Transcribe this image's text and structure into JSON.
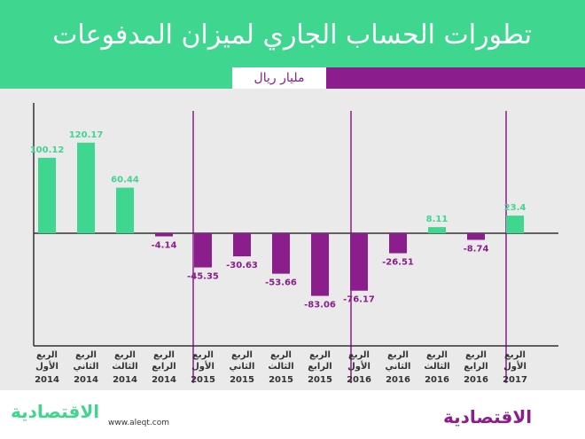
{
  "header": {
    "title": "تطورات الحساب الجاري لميزان المدفوعات",
    "unit": "مليار ريال"
  },
  "colors": {
    "positive": "#3fd68f",
    "negative": "#8b1d8c",
    "header_bg": "#3fd68f",
    "band": "#8b1d8c",
    "chart_bg": "#eaeaea"
  },
  "footer": {
    "logo_left": "الاقتصادية",
    "url": "www.aleqt.com",
    "logo_right": "الاقتصادية"
  },
  "chart_data": {
    "type": "bar",
    "title": "تطورات الحساب الجاري لميزان المدفوعات",
    "ylabel": "مليار ريال",
    "categories": [
      "الربع الأول 2014",
      "الربع الثاني 2014",
      "الربع الثالث 2014",
      "الربع الرابع 2014",
      "الربع الأول 2015",
      "الربع الثاني 2015",
      "الربع الثالث 2015",
      "الربع الرابع 2015",
      "الربع الأول 2016",
      "الربع الثاني 2016",
      "الربع الثالث 2016",
      "الربع الرابع 2016",
      "الربع الأول 2017"
    ],
    "values": [
      100.12,
      120.17,
      60.44,
      -4.14,
      -45.35,
      -30.63,
      -53.66,
      -83.06,
      -76.17,
      -26.51,
      8.11,
      -8.74,
      23.4
    ],
    "labels": [
      "100.12",
      "120.17",
      "60.44",
      "-4.14",
      "-45.35",
      "-30.63",
      "-53.66",
      "-83.06",
      "-76.17",
      "-26.51",
      "8.11",
      "-8.74",
      "23.4"
    ],
    "quarter_line1": [
      "الربع",
      "الربع",
      "الربع",
      "الربع",
      "الربع",
      "الربع",
      "الربع",
      "الربع",
      "الربع",
      "الربع",
      "الربع",
      "الربع",
      "الربع"
    ],
    "quarter_line2": [
      "الأول",
      "الثاني",
      "الثالث",
      "الرابع",
      "الأول",
      "الثاني",
      "الثالث",
      "الرابع",
      "الأول",
      "الثاني",
      "الثالث",
      "الرابع",
      "الأول"
    ],
    "years": [
      "2014",
      "2014",
      "2014",
      "2014",
      "2015",
      "2015",
      "2015",
      "2015",
      "2016",
      "2016",
      "2016",
      "2016",
      "2017"
    ],
    "ylim": [
      -90,
      130
    ],
    "grid": false,
    "legend": "none"
  }
}
